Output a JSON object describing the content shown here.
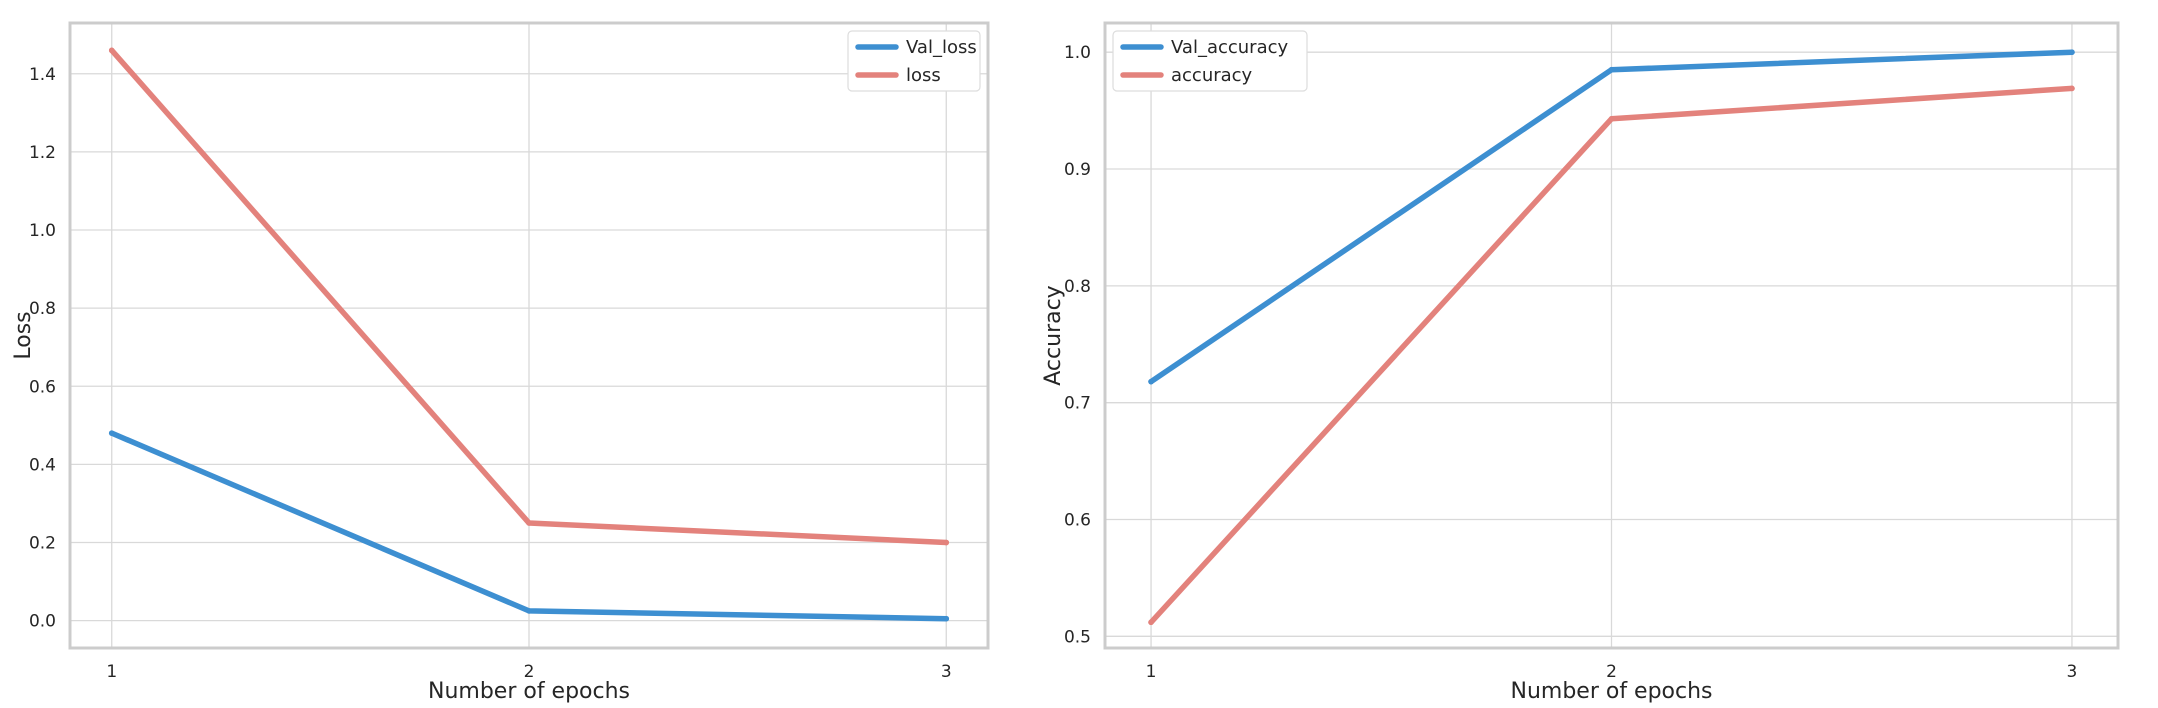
{
  "chart_data": [
    {
      "type": "line",
      "x": [
        1,
        2,
        3
      ],
      "xticks": [
        "1",
        "2",
        "3"
      ],
      "xlim": [
        0.9,
        3.1
      ],
      "ylim": [
        -0.07,
        1.53
      ],
      "yticks": [
        "0.0",
        "0.2",
        "0.4",
        "0.6",
        "0.8",
        "1.0",
        "1.2",
        "1.4"
      ],
      "xlabel": "Number of epochs",
      "ylabel": "Loss",
      "grid": true,
      "legend": "top-right",
      "series": [
        {
          "name": "Val_loss",
          "values": [
            0.48,
            0.025,
            0.005
          ],
          "color": "#3d8fd1"
        },
        {
          "name": "loss",
          "values": [
            1.46,
            0.25,
            0.2
          ],
          "color": "#e3827c"
        }
      ]
    },
    {
      "type": "line",
      "x": [
        1,
        2,
        3
      ],
      "xticks": [
        "1",
        "2",
        "3"
      ],
      "xlim": [
        0.9,
        3.1
      ],
      "ylim": [
        0.49,
        1.025
      ],
      "yticks": [
        "0.5",
        "0.6",
        "0.7",
        "0.8",
        "0.9",
        "1.0"
      ],
      "xlabel": "Number of epochs",
      "ylabel": "Accuracy",
      "grid": true,
      "legend": "top-left",
      "series": [
        {
          "name": "Val_accuracy",
          "values": [
            0.718,
            0.985,
            1.0
          ],
          "color": "#3d8fd1"
        },
        {
          "name": "accuracy",
          "values": [
            0.512,
            0.943,
            0.969
          ],
          "color": "#e3827c"
        }
      ]
    }
  ]
}
